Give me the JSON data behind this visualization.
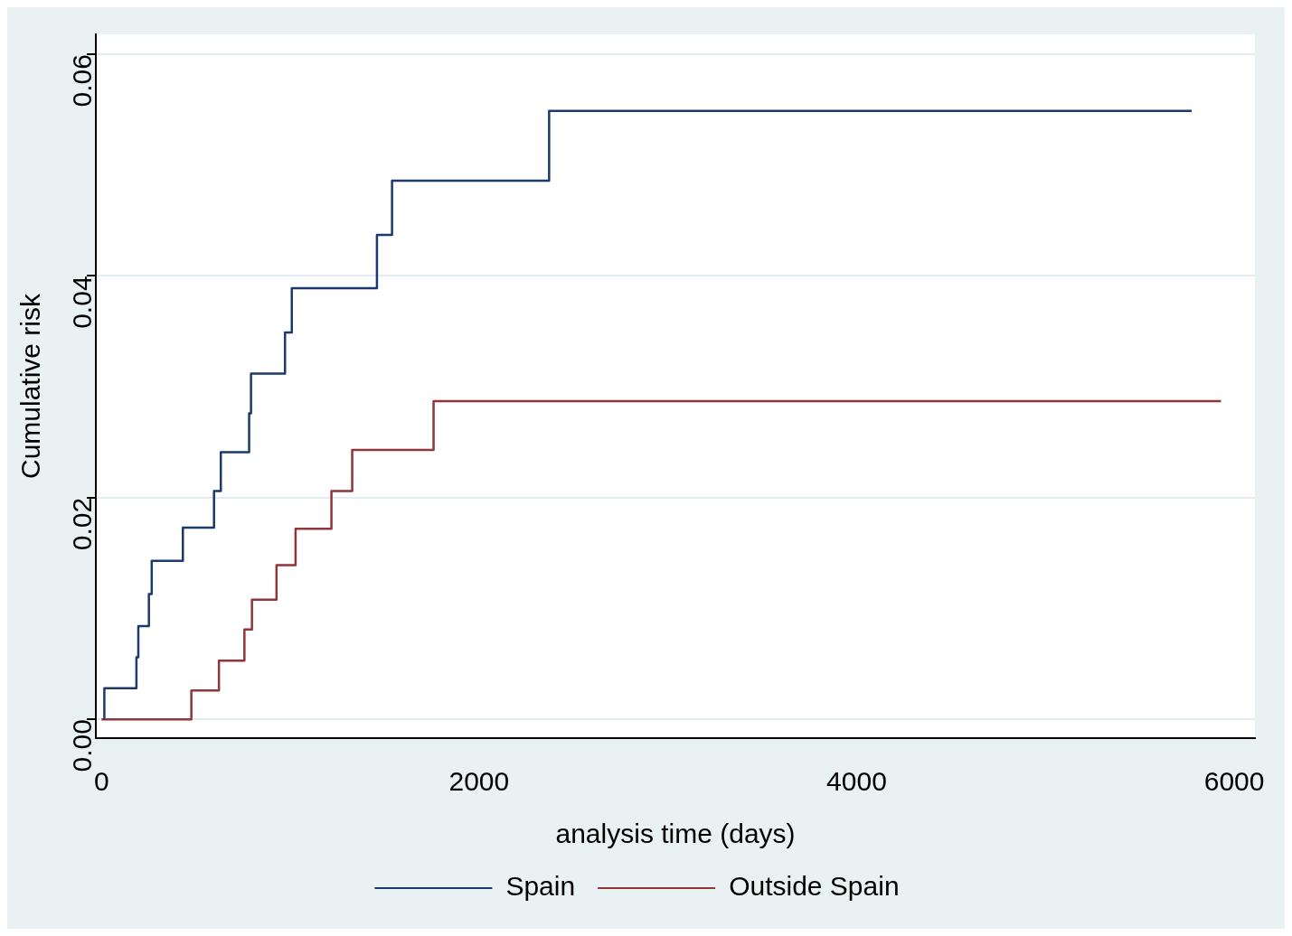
{
  "chart_data": {
    "type": "step",
    "xlabel": "analysis time (days)",
    "ylabel": "Cumulative risk",
    "xlim": [
      -30,
      6110
    ],
    "xticks": [
      0,
      2000,
      4000,
      6000
    ],
    "ylim": [
      -0.0017,
      0.0618
    ],
    "yticks": [
      {
        "value": 0,
        "label": "0.00"
      },
      {
        "value": 0.02,
        "label": "0.02"
      },
      {
        "value": 0.04,
        "label": "0.04"
      },
      {
        "value": 0.06,
        "label": "0.06"
      }
    ],
    "grid": "y",
    "legend": "bottom",
    "marker": "none",
    "line_style": "solid",
    "series": [
      {
        "name": "Spain",
        "color": "#1a3a6b",
        "x": [
          15,
          15,
          185,
          195,
          251,
          266,
          431,
          596,
          632,
          782,
          792,
          972,
          1008,
          1459,
          1539,
          2371,
          5774
        ],
        "values": [
          0,
          0.0028,
          0.0056,
          0.0084,
          0.0113,
          0.0143,
          0.0173,
          0.0206,
          0.0241,
          0.0276,
          0.0312,
          0.0349,
          0.0389,
          0.0437,
          0.0486,
          0.0549,
          0.0549
        ]
      },
      {
        "name": "Outside Spain",
        "color": "#90353b",
        "x": [
          0,
          476,
          622,
          757,
          797,
          927,
          1028,
          1218,
          1328,
          1759,
          5930
        ],
        "values": [
          0,
          0.0026,
          0.0053,
          0.0081,
          0.0108,
          0.0139,
          0.0172,
          0.0206,
          0.0243,
          0.0287,
          0.0287
        ]
      }
    ]
  }
}
